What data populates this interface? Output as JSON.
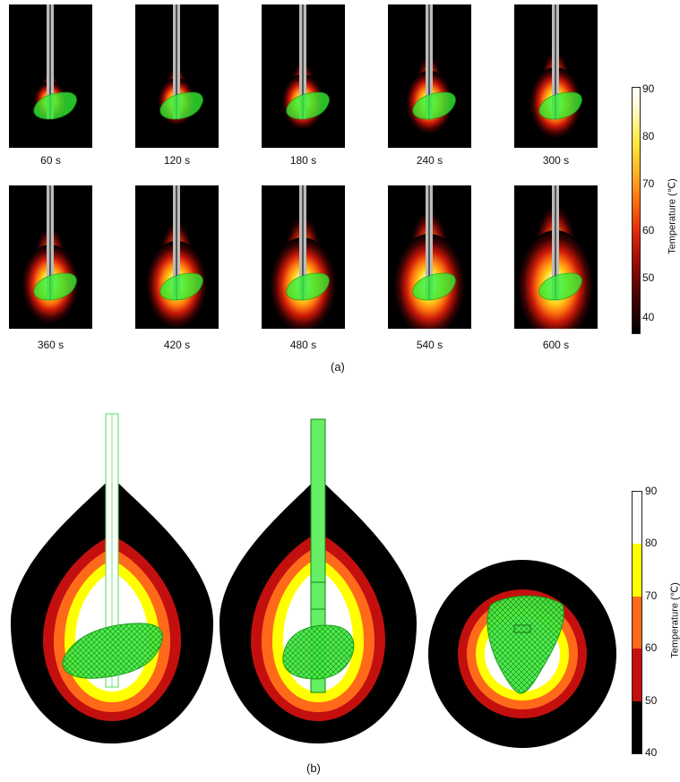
{
  "figure_a": {
    "label": "(a)",
    "time_labels": [
      "60 s",
      "120 s",
      "180 s",
      "240 s",
      "300 s",
      "360 s",
      "420 s",
      "480 s",
      "540 s",
      "600 s"
    ],
    "colorbar": {
      "title": "Temperature (℃)",
      "ticks": [
        "90",
        "80",
        "70",
        "60",
        "50",
        "40"
      ]
    }
  },
  "figure_b": {
    "label": "(b)",
    "colorbar": {
      "title": "Temperature (℃)",
      "ticks": [
        "90",
        "80",
        "70",
        "60",
        "50",
        "40"
      ],
      "band_colors": [
        "#ffffff",
        "#ffff00",
        "#ff6a1a",
        "#c40f0f",
        "#000000"
      ]
    }
  },
  "colors": {
    "ablation_zone": "#33ee33",
    "needle": "#bbbbbb"
  }
}
